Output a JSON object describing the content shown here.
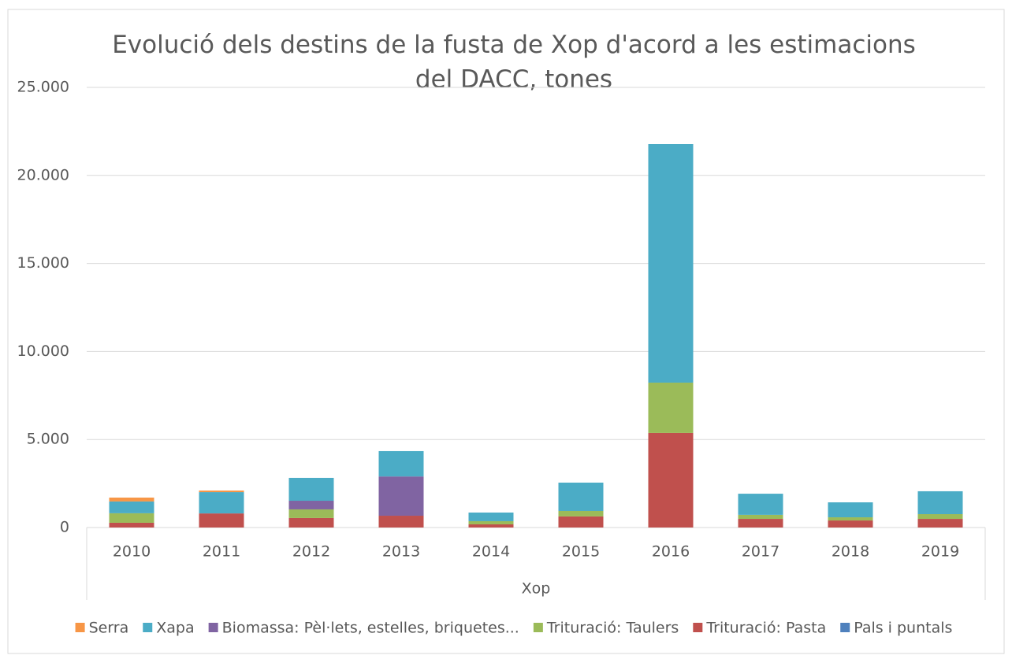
{
  "chart_data": {
    "type": "stacked-bar",
    "title": "Evolució dels destins de la fusta de Xop d'acord a les estimacions del DACC, tones",
    "xlabel": "Xop",
    "categories": [
      "2010",
      "2011",
      "2012",
      "2013",
      "2014",
      "2015",
      "2016",
      "2017",
      "2018",
      "2019"
    ],
    "series": [
      {
        "name": "Serra",
        "color": "#f79646",
        "values": [
          220,
          90,
          0,
          0,
          0,
          0,
          0,
          0,
          0,
          0
        ]
      },
      {
        "name": "Xapa",
        "color": "#4bacc6",
        "values": [
          670,
          1210,
          1300,
          1440,
          490,
          1610,
          13550,
          1200,
          850,
          1300
        ]
      },
      {
        "name": "Biomassa: Pèl·lets, estelles, briquetes...",
        "color": "#8064a2",
        "values": [
          0,
          0,
          490,
          2230,
          0,
          0,
          0,
          0,
          0,
          0
        ]
      },
      {
        "name": "Trituració: Taulers",
        "color": "#9bbb59",
        "values": [
          540,
          0,
          490,
          0,
          180,
          310,
          2860,
          230,
          180,
          270
        ]
      },
      {
        "name": "Trituració: Pasta",
        "color": "#c0504d",
        "values": [
          270,
          800,
          540,
          670,
          180,
          630,
          5370,
          490,
          400,
          490
        ]
      },
      {
        "name": "Pals i puntals",
        "color": "#4f81bd",
        "values": [
          0,
          0,
          0,
          0,
          0,
          0,
          0,
          0,
          0,
          0
        ]
      }
    ],
    "ylim": [
      0,
      25000
    ],
    "yticks": [
      0,
      {
        "value": 5000,
        "label": "5.000"
      },
      {
        "value": 10000,
        "label": "10.000"
      },
      {
        "value": 15000,
        "label": "15.000"
      },
      {
        "value": 20000,
        "label": "20.000"
      },
      {
        "value": 25000,
        "label": "25.000"
      }
    ],
    "grid": true,
    "legend": "bottom"
  }
}
